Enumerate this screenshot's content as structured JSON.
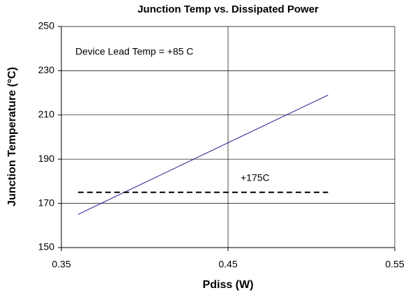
{
  "chart_data": {
    "type": "line",
    "title": "Junction Temp vs. Dissipated Power",
    "xlabel": "Pdiss (W)",
    "ylabel": "Junction Temperature (°C)",
    "annotations": [
      "Device Lead Temp = +85 C",
      "+175C"
    ],
    "series": [
      {
        "color": "#1f1f8f",
        "dash": false,
        "x": [
          0.36,
          0.51
        ],
        "values": [
          165,
          219
        ]
      },
      {
        "color": "#000000",
        "dash": true,
        "x": [
          0.36,
          0.51
        ],
        "values": [
          175,
          175
        ]
      }
    ],
    "xlim": [
      0.35,
      0.55
    ],
    "xticks": [
      0.35,
      0.45,
      0.55
    ],
    "ylim": [
      150,
      250
    ],
    "yticks": [
      150,
      170,
      190,
      210,
      230,
      250
    ],
    "grid": true
  }
}
